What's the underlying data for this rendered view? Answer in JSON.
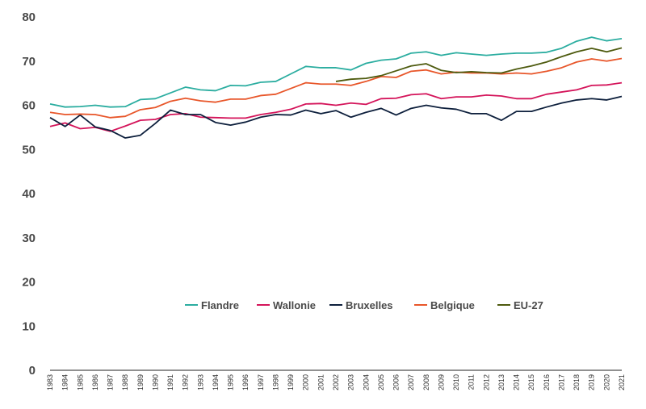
{
  "chart_data": {
    "type": "line",
    "title": "",
    "xlabel": "",
    "ylabel": "",
    "ylim": [
      0,
      80
    ],
    "yticks": [
      0,
      10,
      20,
      30,
      40,
      50,
      60,
      70,
      80
    ],
    "grid": false,
    "legend_position": "inside-bottom-center",
    "x": [
      "1983",
      "1984",
      "1985",
      "1986",
      "1987",
      "1988",
      "1989",
      "1990",
      "1991",
      "1992",
      "1993",
      "1994",
      "1995",
      "1996",
      "1997",
      "1998",
      "1999",
      "2000",
      "2001",
      "2002",
      "2003",
      "2004",
      "2005",
      "2006",
      "2007",
      "2008",
      "2009",
      "2010",
      "2011",
      "2012",
      "2013",
      "2014",
      "2015",
      "2016",
      "2017",
      "2018",
      "2019",
      "2020",
      "2021"
    ],
    "series": [
      {
        "name": "Flandre",
        "color": "#2bada0",
        "values": [
          60.3,
          59.6,
          59.7,
          60.0,
          59.6,
          59.7,
          61.3,
          61.5,
          62.8,
          64.1,
          63.5,
          63.3,
          64.5,
          64.4,
          65.2,
          65.4,
          67.1,
          68.8,
          68.5,
          68.5,
          68.0,
          69.5,
          70.2,
          70.5,
          71.8,
          72.1,
          71.3,
          71.9,
          71.6,
          71.3,
          71.6,
          71.8,
          71.8,
          72.0,
          72.9,
          74.5,
          75.4,
          74.6,
          75.1
        ]
      },
      {
        "name": "Wallonie",
        "color": "#d4145a",
        "values": [
          55.2,
          56.0,
          54.7,
          55.0,
          54.1,
          55.3,
          56.6,
          56.8,
          57.9,
          58.1,
          57.3,
          57.2,
          57.1,
          57.1,
          57.9,
          58.4,
          59.1,
          60.3,
          60.4,
          60.0,
          60.5,
          60.2,
          61.5,
          61.6,
          62.4,
          62.6,
          61.5,
          61.9,
          61.9,
          62.3,
          62.1,
          61.5,
          61.5,
          62.5,
          63.0,
          63.5,
          64.5,
          64.6,
          65.1
        ]
      },
      {
        "name": "Bruxelles",
        "color": "#0d1f3c",
        "values": [
          57.2,
          55.2,
          57.8,
          55.1,
          54.3,
          52.6,
          53.2,
          55.9,
          58.9,
          57.9,
          57.9,
          56.1,
          55.5,
          56.2,
          57.3,
          57.9,
          57.8,
          58.9,
          58.1,
          58.8,
          57.3,
          58.4,
          59.3,
          57.8,
          59.3,
          60.0,
          59.4,
          59.1,
          58.1,
          58.1,
          56.6,
          58.6,
          58.6,
          59.6,
          60.5,
          61.2,
          61.5,
          61.2,
          62.0
        ]
      },
      {
        "name": "Belgique",
        "color": "#e8562a",
        "values": [
          58.4,
          57.9,
          58.0,
          57.9,
          57.2,
          57.5,
          59.0,
          59.5,
          60.9,
          61.6,
          61.0,
          60.7,
          61.4,
          61.4,
          62.2,
          62.5,
          63.8,
          65.1,
          64.8,
          64.8,
          64.5,
          65.4,
          66.5,
          66.3,
          67.7,
          68.0,
          67.1,
          67.5,
          67.3,
          67.3,
          67.1,
          67.3,
          67.1,
          67.7,
          68.5,
          69.8,
          70.5,
          70.0,
          70.6
        ]
      },
      {
        "name": "EU-27",
        "color": "#4d5a0e",
        "values": [
          null,
          null,
          null,
          null,
          null,
          null,
          null,
          null,
          null,
          null,
          null,
          null,
          null,
          null,
          null,
          null,
          null,
          null,
          null,
          65.4,
          65.9,
          66.1,
          66.7,
          67.8,
          68.9,
          69.4,
          67.9,
          67.4,
          67.6,
          67.4,
          67.3,
          68.2,
          68.9,
          69.8,
          71.0,
          72.1,
          72.9,
          72.1,
          73.0
        ]
      }
    ]
  }
}
